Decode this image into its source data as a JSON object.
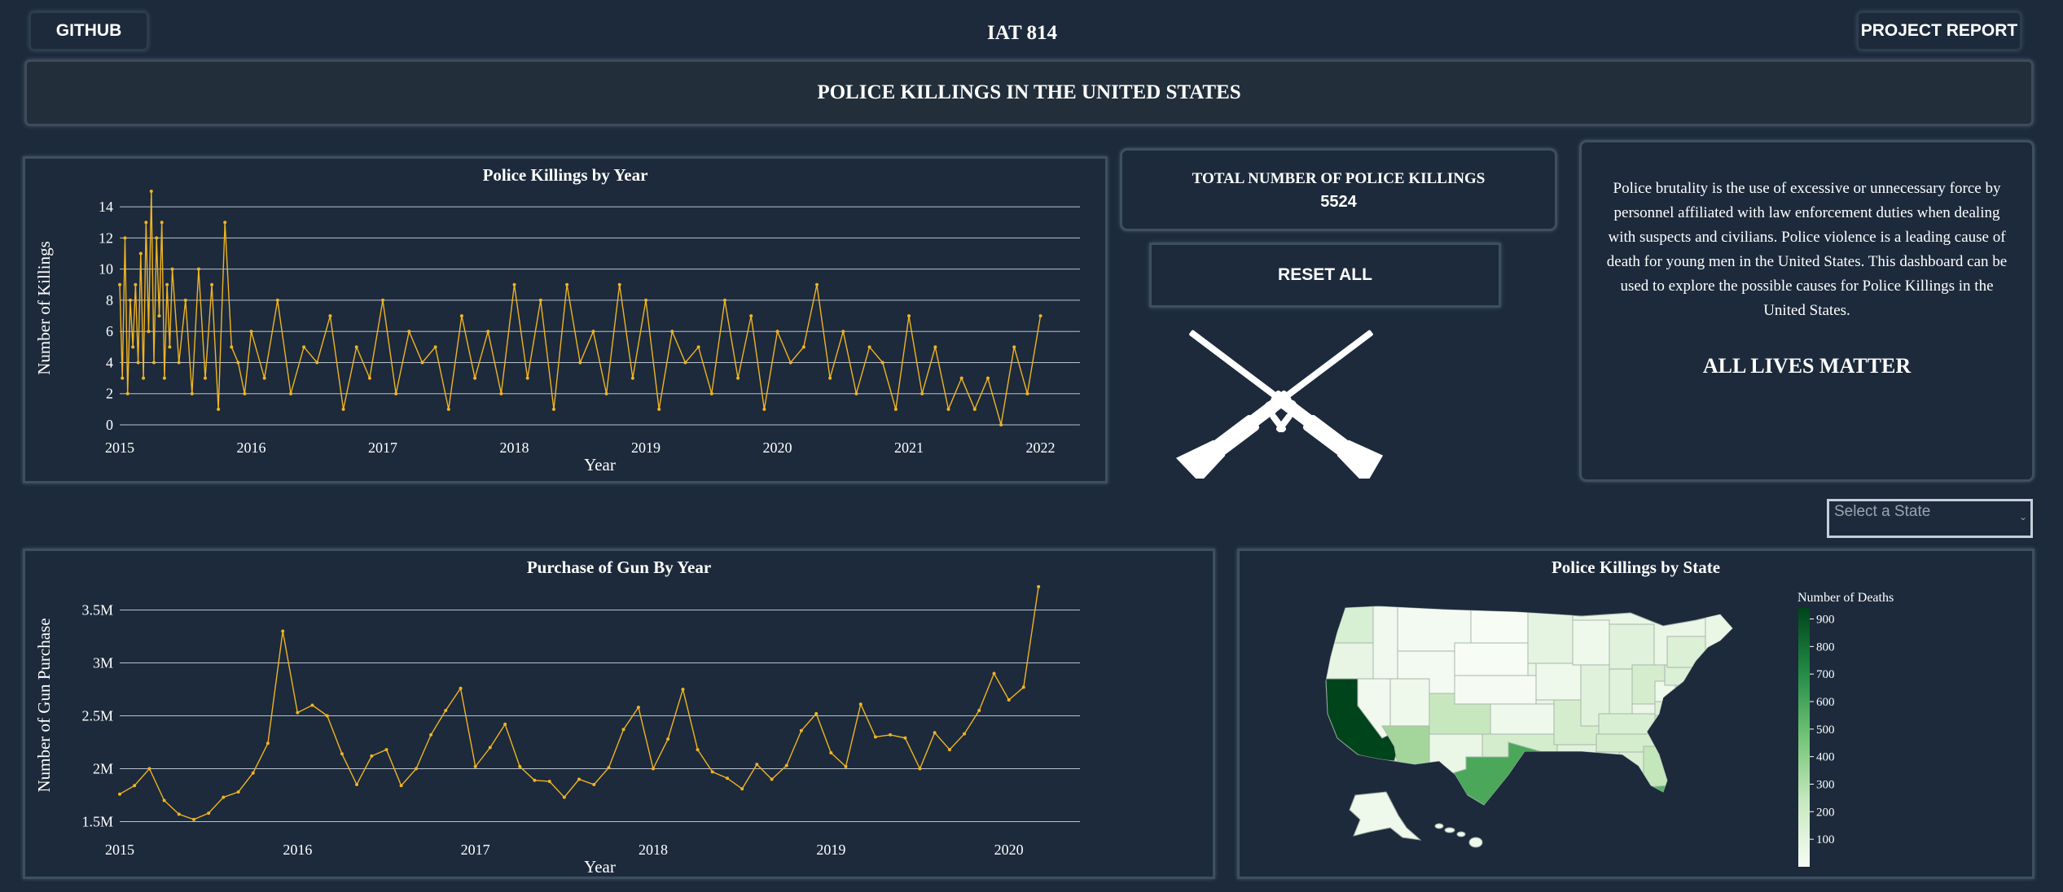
{
  "header": {
    "github_label": "GITHUB",
    "site_title": "IAT 814",
    "report_label": "PROJECT REPORT",
    "banner_title": "POLICE KILLINGS IN THE UNITED STATES"
  },
  "total": {
    "label": "TOTAL NUMBER OF POLICE KILLINGS",
    "value": "5524"
  },
  "reset_label": "RESET ALL",
  "icons": {
    "crossed_rifles": "crossed-rifles-icon"
  },
  "info": {
    "text": "Police brutality is the use of excessive or unnecessary force by personnel affiliated with law enforcement duties when dealing with suspects and civilians. Police violence is a leading cause of death for young men in the United States. This dashboard can be used to explore the possible causes for Police Killings in the United States.",
    "slogan": "ALL LIVES MATTER"
  },
  "state_select": {
    "placeholder": "Select a State",
    "caret": "⌄"
  },
  "colors": {
    "background": "#1c2a3b",
    "line": "#f0b323",
    "grid": "#b9c3ce",
    "map_dark": "#00441b",
    "map_light": "#f7fcf5"
  },
  "chart_data": [
    {
      "type": "line",
      "title": "Police Killings by Year",
      "xlabel": "Year",
      "ylabel": "Number of Killings",
      "xlim": [
        2015.0,
        2022.3
      ],
      "ylim": [
        0,
        15
      ],
      "x_ticks": [
        "2015",
        "2016",
        "2017",
        "2018",
        "2019",
        "2020",
        "2021",
        "2022"
      ],
      "y_ticks": [
        0,
        2,
        4,
        6,
        8,
        10,
        12,
        14
      ],
      "grid": true,
      "series": [
        {
          "x": [
            2015.0,
            2015.02,
            2015.04,
            2015.06,
            2015.08,
            2015.1,
            2015.12,
            2015.14,
            2015.16,
            2015.18,
            2015.2,
            2015.22,
            2015.24,
            2015.26,
            2015.28,
            2015.3,
            2015.32,
            2015.34,
            2015.36,
            2015.38,
            2015.4,
            2015.45,
            2015.5,
            2015.55,
            2015.6,
            2015.65,
            2015.7,
            2015.75,
            2015.8,
            2015.85,
            2015.9,
            2015.95,
            2016.0,
            2016.1,
            2016.2,
            2016.3,
            2016.4,
            2016.5,
            2016.6,
            2016.7,
            2016.8,
            2016.9,
            2017.0,
            2017.1,
            2017.2,
            2017.3,
            2017.4,
            2017.5,
            2017.6,
            2017.7,
            2017.8,
            2017.9,
            2018.0,
            2018.1,
            2018.2,
            2018.3,
            2018.4,
            2018.5,
            2018.6,
            2018.7,
            2018.8,
            2018.9,
            2019.0,
            2019.1,
            2019.2,
            2019.3,
            2019.4,
            2019.5,
            2019.6,
            2019.7,
            2019.8,
            2019.9,
            2020.0,
            2020.1,
            2020.2,
            2020.3,
            2020.4,
            2020.5,
            2020.6,
            2020.7,
            2020.8,
            2020.9,
            2021.0,
            2021.1,
            2021.2,
            2021.3,
            2021.4,
            2021.5,
            2021.6,
            2021.7,
            2021.8,
            2021.9,
            2022.0
          ],
          "y": [
            9,
            3,
            12,
            2,
            8,
            5,
            9,
            4,
            11,
            3,
            13,
            6,
            15,
            4,
            12,
            7,
            13,
            3,
            9,
            5,
            10,
            4,
            8,
            2,
            10,
            3,
            9,
            1,
            13,
            5,
            4,
            2,
            6,
            3,
            8,
            2,
            5,
            4,
            7,
            1,
            5,
            3,
            8,
            2,
            6,
            4,
            5,
            1,
            7,
            3,
            6,
            2,
            9,
            3,
            8,
            1,
            9,
            4,
            6,
            2,
            9,
            3,
            8,
            1,
            6,
            4,
            5,
            2,
            8,
            3,
            7,
            1,
            6,
            4,
            5,
            9,
            3,
            6,
            2,
            5,
            4,
            1,
            7,
            2,
            5,
            1,
            3,
            1,
            3,
            0,
            5,
            2,
            7
          ]
        }
      ]
    },
    {
      "type": "line",
      "title": "Purchase of Gun By Year",
      "xlabel": "Year",
      "ylabel": "Number of Gun Purchase",
      "xlim": [
        2015.0,
        2020.4
      ],
      "ylim": [
        1.45,
        3.75
      ],
      "x_ticks": [
        "2015",
        "2016",
        "2017",
        "2018",
        "2019",
        "2020"
      ],
      "y_ticks": [
        "1.5M",
        "2M",
        "2.5M",
        "3M",
        "3.5M"
      ],
      "grid": true,
      "series": [
        {
          "x": [
            2015.0,
            2015.083,
            2015.167,
            2015.25,
            2015.333,
            2015.417,
            2015.5,
            2015.583,
            2015.667,
            2015.75,
            2015.833,
            2015.917,
            2016.0,
            2016.083,
            2016.167,
            2016.25,
            2016.333,
            2016.417,
            2016.5,
            2016.583,
            2016.667,
            2016.75,
            2016.833,
            2016.917,
            2017.0,
            2017.083,
            2017.167,
            2017.25,
            2017.333,
            2017.417,
            2017.5,
            2017.583,
            2017.667,
            2017.75,
            2017.833,
            2017.917,
            2018.0,
            2018.083,
            2018.167,
            2018.25,
            2018.333,
            2018.417,
            2018.5,
            2018.583,
            2018.667,
            2018.75,
            2018.833,
            2018.917,
            2019.0,
            2019.083,
            2019.167,
            2019.25,
            2019.333,
            2019.417,
            2019.5,
            2019.583,
            2019.667,
            2019.75,
            2019.833,
            2019.917,
            2020.0,
            2020.083,
            2020.167
          ],
          "y": [
            1.76,
            1.84,
            2.0,
            1.7,
            1.57,
            1.52,
            1.58,
            1.73,
            1.78,
            1.96,
            2.24,
            3.3,
            2.53,
            2.6,
            2.5,
            2.14,
            1.85,
            2.12,
            2.18,
            1.84,
            2.0,
            2.32,
            2.55,
            2.76,
            2.02,
            2.2,
            2.42,
            2.02,
            1.89,
            1.88,
            1.73,
            1.9,
            1.85,
            2.01,
            2.37,
            2.58,
            2.0,
            2.28,
            2.75,
            2.18,
            1.97,
            1.91,
            1.81,
            2.04,
            1.9,
            2.03,
            2.36,
            2.52,
            2.15,
            2.02,
            2.61,
            2.3,
            2.32,
            2.29,
            2.0,
            2.34,
            2.18,
            2.33,
            2.55,
            2.9,
            2.65,
            2.77,
            3.72
          ]
        }
      ]
    },
    {
      "type": "heatmap",
      "title": "Police Killings by State",
      "legend_title": "Number of Deaths",
      "colorbar_ticks": [
        100,
        200,
        300,
        400,
        500,
        600,
        700,
        800,
        900
      ],
      "states": [
        {
          "state": "CA",
          "value": 900
        },
        {
          "state": "TX",
          "value": 520
        },
        {
          "state": "FL",
          "value": 430
        },
        {
          "state": "AZ",
          "value": 280
        },
        {
          "state": "CO",
          "value": 220
        },
        {
          "state": "GA",
          "value": 200
        },
        {
          "state": "OK",
          "value": 150
        },
        {
          "state": "NC",
          "value": 130
        },
        {
          "state": "OH",
          "value": 130
        },
        {
          "state": "WA",
          "value": 150
        }
      ]
    }
  ]
}
